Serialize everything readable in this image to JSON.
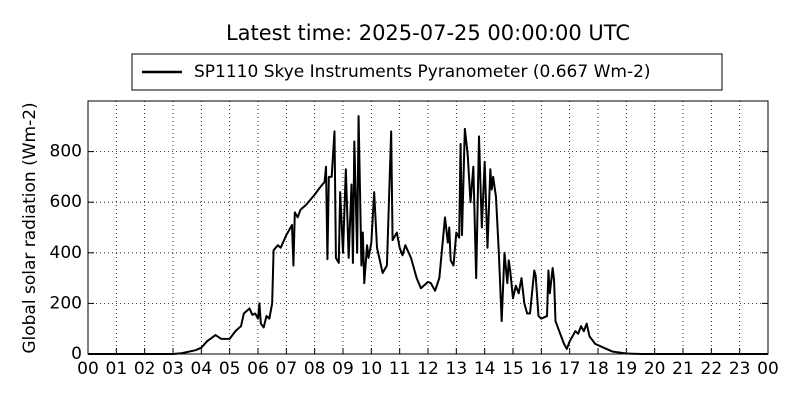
{
  "chart_data": {
    "type": "line",
    "title": "Latest time: 2025-07-25 00:00:00 UTC",
    "y_label": "Global solar radiation (Wm-2)",
    "legend": "upper center",
    "grid": true,
    "xlim": [
      0,
      24
    ],
    "ylim": [
      0,
      1000
    ],
    "yticks": [
      0,
      200,
      400,
      600,
      800
    ],
    "xticks": [
      {
        "value": 0,
        "label": "00"
      },
      {
        "value": 1,
        "label": "01"
      },
      {
        "value": 2,
        "label": "02"
      },
      {
        "value": 3,
        "label": "03"
      },
      {
        "value": 4,
        "label": "04"
      },
      {
        "value": 5,
        "label": "05"
      },
      {
        "value": 6,
        "label": "06"
      },
      {
        "value": 7,
        "label": "07"
      },
      {
        "value": 8,
        "label": "08"
      },
      {
        "value": 9,
        "label": "09"
      },
      {
        "value": 10,
        "label": "10"
      },
      {
        "value": 11,
        "label": "11"
      },
      {
        "value": 12,
        "label": "12"
      },
      {
        "value": 13,
        "label": "13"
      },
      {
        "value": 14,
        "label": "14"
      },
      {
        "value": 15,
        "label": "15"
      },
      {
        "value": 16,
        "label": "16"
      },
      {
        "value": 17,
        "label": "17"
      },
      {
        "value": 18,
        "label": "18"
      },
      {
        "value": 19,
        "label": "19"
      },
      {
        "value": 20,
        "label": "20"
      },
      {
        "value": 21,
        "label": "21"
      },
      {
        "value": 22,
        "label": "22"
      },
      {
        "value": 23,
        "label": "23"
      },
      {
        "value": 24,
        "label": "00"
      }
    ],
    "x": [
      0,
      3.0,
      3.3,
      3.8,
      4.0,
      4.2,
      4.5,
      4.7,
      5.0,
      5.2,
      5.4,
      5.5,
      5.7,
      5.8,
      5.9,
      6.0,
      6.05,
      6.1,
      6.2,
      6.3,
      6.4,
      6.5,
      6.55,
      6.7,
      6.8,
      7.0,
      7.2,
      7.25,
      7.3,
      7.4,
      7.5,
      7.7,
      8.0,
      8.2,
      8.35,
      8.4,
      8.45,
      8.5,
      8.6,
      8.7,
      8.75,
      8.85,
      8.9,
      9.0,
      9.1,
      9.2,
      9.3,
      9.35,
      9.4,
      9.5,
      9.55,
      9.65,
      9.7,
      9.75,
      9.85,
      9.9,
      10.0,
      10.1,
      10.2,
      10.4,
      10.55,
      10.7,
      10.75,
      10.9,
      11.0,
      11.1,
      11.2,
      11.4,
      11.6,
      11.75,
      12.0,
      12.1,
      12.25,
      12.4,
      12.5,
      12.6,
      12.7,
      12.75,
      12.8,
      12.9,
      13.0,
      13.1,
      13.15,
      13.2,
      13.3,
      13.4,
      13.5,
      13.6,
      13.7,
      13.8,
      13.9,
      14.0,
      14.1,
      14.2,
      14.25,
      14.3,
      14.4,
      14.5,
      14.6,
      14.7,
      14.8,
      14.85,
      14.9,
      15.0,
      15.1,
      15.2,
      15.3,
      15.4,
      15.5,
      15.6,
      15.75,
      15.8,
      15.9,
      16.0,
      16.2,
      16.25,
      16.3,
      16.4,
      16.45,
      16.5,
      16.6,
      16.8,
      16.9,
      17.0,
      17.2,
      17.3,
      17.4,
      17.5,
      17.6,
      17.7,
      17.9,
      18.2,
      18.5,
      19.0,
      19.5,
      24
    ],
    "series": [
      {
        "name": "SP1110 Skye Instruments Pyranometer (0.667 Wm-2)",
        "color": "#000000",
        "values": [
          0,
          0,
          3,
          15,
          25,
          50,
          75,
          60,
          60,
          90,
          110,
          160,
          180,
          155,
          160,
          140,
          200,
          120,
          105,
          150,
          140,
          200,
          410,
          430,
          420,
          470,
          510,
          350,
          560,
          540,
          570,
          590,
          630,
          660,
          680,
          740,
          375,
          700,
          700,
          880,
          380,
          360,
          640,
          400,
          730,
          380,
          670,
          360,
          840,
          400,
          940,
          350,
          480,
          280,
          430,
          380,
          440,
          640,
          420,
          320,
          350,
          880,
          450,
          480,
          420,
          390,
          430,
          380,
          300,
          260,
          285,
          280,
          250,
          300,
          420,
          540,
          440,
          500,
          370,
          350,
          480,
          460,
          830,
          470,
          890,
          790,
          600,
          740,
          300,
          860,
          500,
          760,
          420,
          730,
          650,
          700,
          620,
          400,
          130,
          400,
          280,
          370,
          330,
          220,
          270,
          240,
          300,
          200,
          160,
          160,
          330,
          310,
          150,
          140,
          150,
          330,
          240,
          340,
          290,
          130,
          100,
          40,
          20,
          50,
          90,
          80,
          110,
          90,
          120,
          70,
          40,
          25,
          10,
          2,
          0,
          0
        ]
      }
    ]
  }
}
